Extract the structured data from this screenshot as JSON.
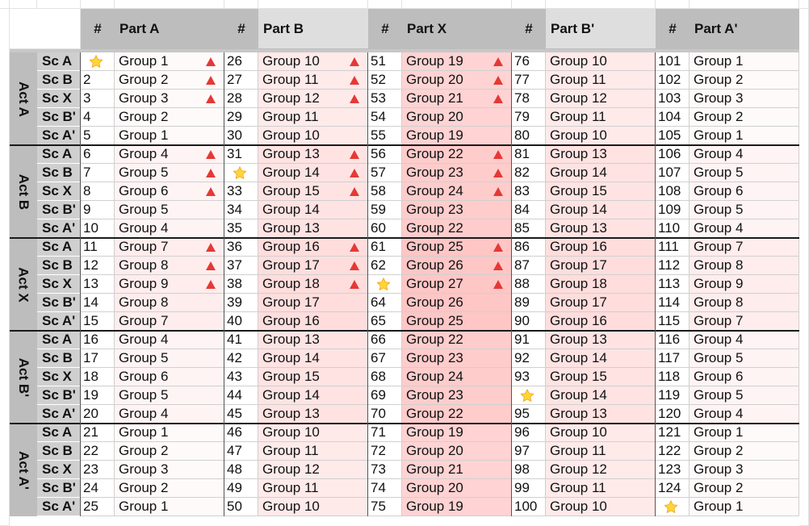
{
  "part_headers": [
    {
      "num_label": "#",
      "part_label": "Part A"
    },
    {
      "num_label": "#",
      "part_label": "Part B"
    },
    {
      "num_label": "#",
      "part_label": "Part X"
    },
    {
      "num_label": "#",
      "part_label": "Part B'"
    },
    {
      "num_label": "#",
      "part_label": "Part A'"
    }
  ],
  "acts": [
    {
      "label": "Act A",
      "scenes": [
        "Sc A",
        "Sc B",
        "Sc X",
        "Sc B'",
        "Sc A'"
      ]
    },
    {
      "label": "Act B",
      "scenes": [
        "Sc A",
        "Sc B",
        "Sc X",
        "Sc B'",
        "Sc A'"
      ]
    },
    {
      "label": "Act X",
      "scenes": [
        "Sc A",
        "Sc B",
        "Sc X",
        "Sc B'",
        "Sc A'"
      ]
    },
    {
      "label": "Act B'",
      "scenes": [
        "Sc A",
        "Sc B",
        "Sc X",
        "Sc B'",
        "Sc A'"
      ]
    },
    {
      "label": "Act A'",
      "scenes": [
        "Sc A",
        "Sc B",
        "Sc X",
        "Sc B'",
        "Sc A'"
      ]
    }
  ],
  "rows": [
    [
      "",
      "Group 1",
      "26",
      "Group 10",
      "51",
      "Group 19",
      "76",
      "Group 10",
      "101",
      "Group 1"
    ],
    [
      "2",
      "Group 2",
      "27",
      "Group 11",
      "52",
      "Group 20",
      "77",
      "Group 11",
      "102",
      "Group 2"
    ],
    [
      "3",
      "Group 3",
      "28",
      "Group 12",
      "53",
      "Group 21",
      "78",
      "Group 12",
      "103",
      "Group 3"
    ],
    [
      "4",
      "Group 2",
      "29",
      "Group 11",
      "54",
      "Group 20",
      "79",
      "Group 11",
      "104",
      "Group 2"
    ],
    [
      "5",
      "Group 1",
      "30",
      "Group 10",
      "55",
      "Group 19",
      "80",
      "Group 10",
      "105",
      "Group 1"
    ],
    [
      "6",
      "Group 4",
      "31",
      "Group 13",
      "56",
      "Group 22",
      "81",
      "Group 13",
      "106",
      "Group 4"
    ],
    [
      "7",
      "Group 5",
      "",
      "Group 14",
      "57",
      "Group 23",
      "82",
      "Group 14",
      "107",
      "Group 5"
    ],
    [
      "8",
      "Group 6",
      "33",
      "Group 15",
      "58",
      "Group 24",
      "83",
      "Group 15",
      "108",
      "Group 6"
    ],
    [
      "9",
      "Group 5",
      "34",
      "Group 14",
      "59",
      "Group 23",
      "84",
      "Group 14",
      "109",
      "Group 5"
    ],
    [
      "10",
      "Group 4",
      "35",
      "Group 13",
      "60",
      "Group 22",
      "85",
      "Group 13",
      "110",
      "Group 4"
    ],
    [
      "11",
      "Group 7",
      "36",
      "Group 16",
      "61",
      "Group 25",
      "86",
      "Group 16",
      "111",
      "Group 7"
    ],
    [
      "12",
      "Group 8",
      "37",
      "Group 17",
      "62",
      "Group 26",
      "87",
      "Group 17",
      "112",
      "Group 8"
    ],
    [
      "13",
      "Group 9",
      "38",
      "Group 18",
      "",
      "Group 27",
      "88",
      "Group 18",
      "113",
      "Group 9"
    ],
    [
      "14",
      "Group 8",
      "39",
      "Group 17",
      "64",
      "Group 26",
      "89",
      "Group 17",
      "114",
      "Group 8"
    ],
    [
      "15",
      "Group 7",
      "40",
      "Group 16",
      "65",
      "Group 25",
      "90",
      "Group 16",
      "115",
      "Group 7"
    ],
    [
      "16",
      "Group 4",
      "41",
      "Group 13",
      "66",
      "Group 22",
      "91",
      "Group 13",
      "116",
      "Group 4"
    ],
    [
      "17",
      "Group 5",
      "42",
      "Group 14",
      "67",
      "Group 23",
      "92",
      "Group 14",
      "117",
      "Group 5"
    ],
    [
      "18",
      "Group 6",
      "43",
      "Group 15",
      "68",
      "Group 24",
      "93",
      "Group 15",
      "118",
      "Group 6"
    ],
    [
      "19",
      "Group 5",
      "44",
      "Group 14",
      "69",
      "Group 23",
      "",
      "Group 14",
      "119",
      "Group 5"
    ],
    [
      "20",
      "Group 4",
      "45",
      "Group 13",
      "70",
      "Group 22",
      "95",
      "Group 13",
      "120",
      "Group 4"
    ],
    [
      "21",
      "Group 1",
      "46",
      "Group 10",
      "71",
      "Group 19",
      "96",
      "Group 10",
      "121",
      "Group 1"
    ],
    [
      "22",
      "Group 2",
      "47",
      "Group 11",
      "72",
      "Group 20",
      "97",
      "Group 11",
      "122",
      "Group 2"
    ],
    [
      "23",
      "Group 3",
      "48",
      "Group 12",
      "73",
      "Group 21",
      "98",
      "Group 12",
      "123",
      "Group 3"
    ],
    [
      "24",
      "Group 2",
      "49",
      "Group 11",
      "74",
      "Group 20",
      "99",
      "Group 11",
      "124",
      "Group 2"
    ],
    [
      "25",
      "Group 1",
      "50",
      "Group 10",
      "75",
      "Group 19",
      "100",
      "Group 10",
      "",
      "Group 1"
    ]
  ],
  "stars": [
    {
      "row": 0,
      "part": 0
    },
    {
      "row": 6,
      "part": 1
    },
    {
      "row": 12,
      "part": 2
    },
    {
      "row": 18,
      "part": 3
    },
    {
      "row": 24,
      "part": 4
    }
  ],
  "triangles": [
    {
      "part": 0,
      "rows": [
        0,
        1,
        2,
        5,
        6,
        7,
        10,
        11,
        12
      ]
    },
    {
      "part": 1,
      "rows": [
        0,
        1,
        2,
        5,
        6,
        7,
        10,
        11,
        12
      ]
    },
    {
      "part": 2,
      "rows": [
        0,
        1,
        2,
        5,
        6,
        7,
        10,
        11,
        12
      ]
    }
  ],
  "colors": {
    "header_num": "#bdbdbd",
    "header_part": [
      "#bdbdbd",
      "#dedede",
      "#bdbdbd",
      "#dedede",
      "#bdbdbd"
    ],
    "act_bg": "#bdbdbd",
    "scene_bg": "#cfcfcf",
    "triangle": "#e53935",
    "star": "#fdd835",
    "star_stroke": "#f9a825",
    "grid": "#e2e2e2",
    "act_divider": "#1a1a1a"
  }
}
